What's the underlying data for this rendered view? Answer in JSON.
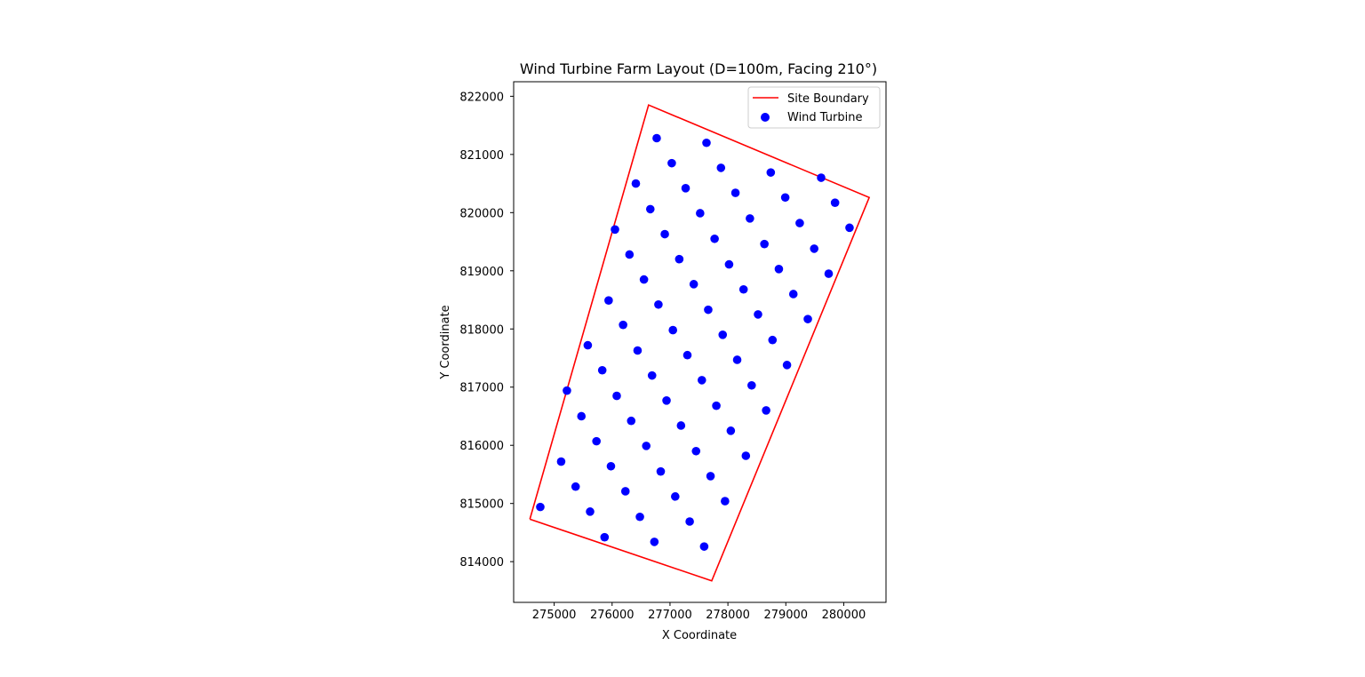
{
  "chart_data": {
    "type": "scatter",
    "title": "Wind Turbine Farm Layout (D=100m, Facing 210°)",
    "xlabel": "X Coordinate",
    "ylabel": "Y Coordinate",
    "xlim": [
      274300,
      280730
    ],
    "ylim": [
      813300,
      822250
    ],
    "x_ticks": [
      275000,
      276000,
      277000,
      278000,
      279000,
      280000
    ],
    "y_ticks": [
      814000,
      815000,
      816000,
      817000,
      818000,
      819000,
      820000,
      821000,
      822000
    ],
    "x_tick_labels": [
      "275000",
      "276000",
      "277000",
      "278000",
      "279000",
      "280000"
    ],
    "y_tick_labels": [
      "814000",
      "815000",
      "816000",
      "817000",
      "818000",
      "819000",
      "820000",
      "821000",
      "822000"
    ],
    "grid": false,
    "legend_position": "top-right",
    "legend": [
      "Site Boundary",
      "Wind Turbine"
    ],
    "colors": {
      "boundary": "#ff0000",
      "turbine": "#0000ff"
    },
    "series": [
      {
        "name": "Site Boundary",
        "type": "line",
        "points": [
          [
            274580,
            814730
          ],
          [
            276630,
            821850
          ],
          [
            280440,
            820260
          ],
          [
            277720,
            813670
          ],
          [
            274580,
            814730
          ]
        ]
      },
      {
        "name": "Wind Turbine",
        "type": "scatter",
        "points": [
          [
            276770,
            821280
          ],
          [
            277630,
            821200
          ],
          [
            277030,
            820850
          ],
          [
            277880,
            820770
          ],
          [
            278740,
            820690
          ],
          [
            279610,
            820600
          ],
          [
            276410,
            820500
          ],
          [
            277270,
            820420
          ],
          [
            278130,
            820340
          ],
          [
            278990,
            820260
          ],
          [
            279850,
            820170
          ],
          [
            276660,
            820060
          ],
          [
            277520,
            819990
          ],
          [
            278380,
            819900
          ],
          [
            279240,
            819820
          ],
          [
            280100,
            819740
          ],
          [
            276050,
            819710
          ],
          [
            276910,
            819630
          ],
          [
            277770,
            819550
          ],
          [
            278630,
            819460
          ],
          [
            279490,
            819380
          ],
          [
            276300,
            819280
          ],
          [
            277160,
            819200
          ],
          [
            278020,
            819110
          ],
          [
            278880,
            819030
          ],
          [
            279740,
            818950
          ],
          [
            276550,
            818850
          ],
          [
            277410,
            818770
          ],
          [
            278270,
            818680
          ],
          [
            279130,
            818600
          ],
          [
            275940,
            818490
          ],
          [
            276800,
            818420
          ],
          [
            277660,
            818330
          ],
          [
            278520,
            818250
          ],
          [
            279380,
            818170
          ],
          [
            276190,
            818070
          ],
          [
            277050,
            817980
          ],
          [
            277910,
            817900
          ],
          [
            278770,
            817810
          ],
          [
            275580,
            817720
          ],
          [
            276440,
            817630
          ],
          [
            277300,
            817550
          ],
          [
            278160,
            817470
          ],
          [
            279020,
            817380
          ],
          [
            275830,
            817290
          ],
          [
            276690,
            817200
          ],
          [
            277550,
            817120
          ],
          [
            278410,
            817030
          ],
          [
            275220,
            816940
          ],
          [
            276080,
            816850
          ],
          [
            276940,
            816770
          ],
          [
            277800,
            816680
          ],
          [
            278660,
            816600
          ],
          [
            275470,
            816500
          ],
          [
            276330,
            816420
          ],
          [
            277190,
            816340
          ],
          [
            278050,
            816250
          ],
          [
            275730,
            816070
          ],
          [
            276590,
            815990
          ],
          [
            277450,
            815900
          ],
          [
            278310,
            815820
          ],
          [
            275120,
            815720
          ],
          [
            275980,
            815640
          ],
          [
            276840,
            815550
          ],
          [
            277700,
            815470
          ],
          [
            275370,
            815290
          ],
          [
            276230,
            815210
          ],
          [
            277090,
            815120
          ],
          [
            277950,
            815040
          ],
          [
            274760,
            814940
          ],
          [
            275620,
            814860
          ],
          [
            276480,
            814770
          ],
          [
            277340,
            814690
          ],
          [
            275870,
            814420
          ],
          [
            276730,
            814340
          ],
          [
            277590,
            814260
          ]
        ]
      }
    ]
  }
}
